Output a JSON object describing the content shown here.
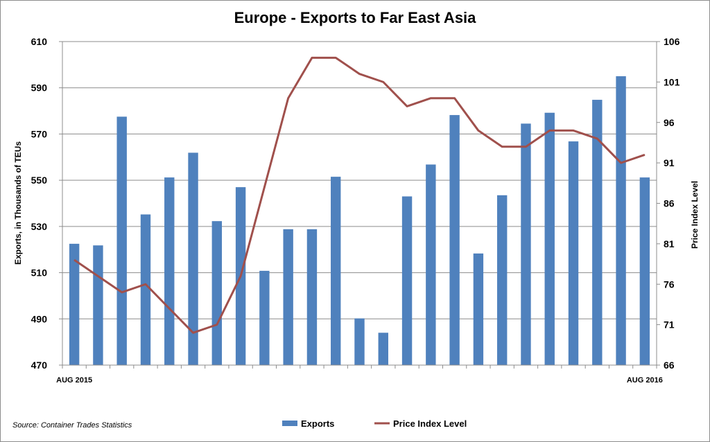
{
  "chart_data": {
    "type": "bar",
    "title": "Europe - Exports to Far East Asia",
    "xlabel": "",
    "ylabel": "Exports, in Thousands of TEUs",
    "y2label": "Price Index Level",
    "ylim": [
      470,
      610
    ],
    "y2lim": [
      66,
      106
    ],
    "yticks": [
      470,
      490,
      510,
      530,
      550,
      570,
      590,
      610
    ],
    "y2ticks": [
      66,
      71,
      76,
      81,
      86,
      91,
      96,
      101,
      106
    ],
    "categories": [
      "AUG 2015",
      "",
      "",
      "",
      "",
      "",
      "",
      "",
      "",
      "",
      "",
      "",
      "",
      "",
      "",
      "",
      "",
      "",
      "",
      "",
      "",
      "",
      "",
      "",
      "AUG 2016"
    ],
    "grid": true,
    "legend_position": "bottom",
    "series": [
      {
        "name": "Exports",
        "type": "bar",
        "axis": "left",
        "color": "#4f81bd",
        "values": [
          522.5,
          521.8,
          577.5,
          535.2,
          551.2,
          561.9,
          532.3,
          547.0,
          510.8,
          528.8,
          528.8,
          551.5,
          490.2,
          484.0,
          543.0,
          556.8,
          578.2,
          518.3,
          543.5,
          574.5,
          579.2,
          566.8,
          584.8,
          595.0,
          551.2
        ]
      },
      {
        "name": "Price Index Level",
        "type": "line",
        "axis": "right",
        "color": "#a0504c",
        "values": [
          79.0,
          77.0,
          75.0,
          76.0,
          73.0,
          70.0,
          71.0,
          77.0,
          88.0,
          99.0,
          104.0,
          104.0,
          102.0,
          101.0,
          98.0,
          99.0,
          99.0,
          95.0,
          93.0,
          93.0,
          95.0,
          95.0,
          94.0,
          91.0,
          92.0
        ]
      }
    ]
  },
  "source_note": "Source: Container Trades Statistics"
}
